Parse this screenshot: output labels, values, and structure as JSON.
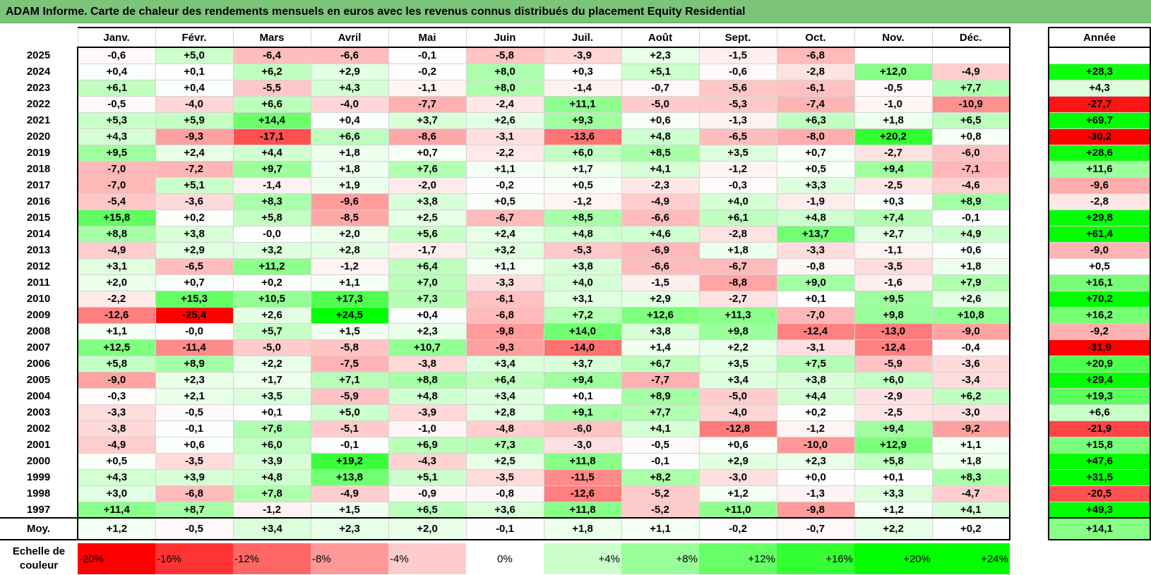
{
  "title": "ADAM Informe. Carte de chaleur des rendements mensuels en euros avec les revenus connus distribués du placement Equity Residential",
  "chart_data": {
    "type": "heatmap",
    "title": "ADAM Informe. Carte de chaleur des rendements mensuels en euros avec les revenus connus distribués du placement Equity Residential",
    "columns": [
      "Janv.",
      "Févr.",
      "Mars",
      "Avril",
      "Mai",
      "Juin",
      "Juil.",
      "Août",
      "Sept.",
      "Oct.",
      "Nov.",
      "Déc."
    ],
    "annual_header": "Année",
    "rows": [
      {
        "year": "2025",
        "values": [
          "-0,6",
          "+5,0",
          "-6,4",
          "-6,6",
          "-0,1",
          "-5,8",
          "-3,9",
          "+2,3",
          "-1,5",
          "-6,8",
          "",
          ""
        ],
        "annual": ""
      },
      {
        "year": "2024",
        "values": [
          "+0,4",
          "+0,1",
          "+6,2",
          "+2,9",
          "-0,2",
          "+8,0",
          "+0,3",
          "+5,1",
          "-0,6",
          "-2,8",
          "+12,0",
          "-4,9"
        ],
        "annual": "+28,3"
      },
      {
        "year": "2023",
        "values": [
          "+6,1",
          "+0,4",
          "-5,5",
          "+4,3",
          "-1,1",
          "+8,0",
          "-1,4",
          "-0,7",
          "-5,6",
          "-6,1",
          "-0,5",
          "+7,7"
        ],
        "annual": "+4,3"
      },
      {
        "year": "2022",
        "values": [
          "-0,5",
          "-4,0",
          "+6,6",
          "-4,0",
          "-7,7",
          "-2,4",
          "+11,1",
          "-5,0",
          "-5,3",
          "-7,4",
          "-1,0",
          "-10,9"
        ],
        "annual": "-27,7"
      },
      {
        "year": "2021",
        "values": [
          "+5,3",
          "+5,9",
          "+14,4",
          "+0,4",
          "+3,7",
          "+2,6",
          "+9,3",
          "+0,6",
          "-1,3",
          "+6,3",
          "+1,8",
          "+6,5"
        ],
        "annual": "+69,7"
      },
      {
        "year": "2020",
        "values": [
          "+4,3",
          "-9,3",
          "-17,1",
          "+6,6",
          "-8,6",
          "-3,1",
          "-13,6",
          "+4,8",
          "-6,5",
          "-8,0",
          "+20,2",
          "+0,8"
        ],
        "annual": "-30,2"
      },
      {
        "year": "2019",
        "values": [
          "+9,5",
          "+2,4",
          "+4,4",
          "+1,8",
          "+0,7",
          "-2,2",
          "+6,0",
          "+8,5",
          "+3,5",
          "+0,7",
          "-2,7",
          "-6,0"
        ],
        "annual": "+28,6"
      },
      {
        "year": "2018",
        "values": [
          "-7,0",
          "-7,2",
          "+9,7",
          "+1,8",
          "+7,6",
          "+1,1",
          "+1,7",
          "+4,1",
          "-1,2",
          "+0,5",
          "+9,4",
          "-7,1"
        ],
        "annual": "+11,6"
      },
      {
        "year": "2017",
        "values": [
          "-7,0",
          "+5,1",
          "-1,4",
          "+1,9",
          "-2,0",
          "-0,2",
          "+0,5",
          "-2,3",
          "-0,3",
          "+3,3",
          "-2,5",
          "-4,6"
        ],
        "annual": "-9,6"
      },
      {
        "year": "2016",
        "values": [
          "-5,4",
          "-3,6",
          "+8,3",
          "-9,6",
          "+3,8",
          "+0,5",
          "-1,2",
          "-4,9",
          "+4,0",
          "-1,9",
          "+0,3",
          "+8,9"
        ],
        "annual": "-2,8"
      },
      {
        "year": "2015",
        "values": [
          "+15,8",
          "+0,2",
          "+5,8",
          "-8,5",
          "+2,5",
          "-6,7",
          "+8,5",
          "-6,6",
          "+6,1",
          "+4,8",
          "+7,4",
          "-0,1"
        ],
        "annual": "+29,8"
      },
      {
        "year": "2014",
        "values": [
          "+8,8",
          "+3,8",
          "-0,0",
          "+2,0",
          "+5,6",
          "+2,4",
          "+4,8",
          "+4,6",
          "-2,8",
          "+13,7",
          "+2,7",
          "+4,9"
        ],
        "annual": "+61,4"
      },
      {
        "year": "2013",
        "values": [
          "-4,9",
          "+2,9",
          "+3,2",
          "+2,8",
          "-1,7",
          "+3,2",
          "-5,3",
          "-6,9",
          "+1,8",
          "-3,3",
          "-1,1",
          "+0,6"
        ],
        "annual": "-9,0"
      },
      {
        "year": "2012",
        "values": [
          "+3,1",
          "-6,5",
          "+11,2",
          "-1,2",
          "+6,4",
          "+1,1",
          "+3,8",
          "-6,6",
          "-6,7",
          "-0,8",
          "-3,5",
          "+1,8"
        ],
        "annual": "+0,5"
      },
      {
        "year": "2011",
        "values": [
          "+2,0",
          "+0,7",
          "+0,2",
          "+1,1",
          "+7,0",
          "-3,3",
          "+4,0",
          "-1,5",
          "-8,8",
          "+9,0",
          "-1,6",
          "+7,9"
        ],
        "annual": "+16,1"
      },
      {
        "year": "2010",
        "values": [
          "-2,2",
          "+15,3",
          "+10,5",
          "+17,3",
          "+7,3",
          "-6,1",
          "+3,1",
          "+2,9",
          "-2,7",
          "+0,1",
          "+9,5",
          "+2,6"
        ],
        "annual": "+70,2"
      },
      {
        "year": "2009",
        "values": [
          "-12,6",
          "-25,4",
          "+2,6",
          "+24,5",
          "+0,4",
          "-6,8",
          "+7,2",
          "+12,6",
          "+11,3",
          "-7,0",
          "+9,8",
          "+10,8"
        ],
        "annual": "+16,2"
      },
      {
        "year": "2008",
        "values": [
          "+1,1",
          "-0,0",
          "+5,7",
          "+1,5",
          "+2,3",
          "-9,8",
          "+14,0",
          "+3,8",
          "+9,8",
          "-12,4",
          "-13,0",
          "-9,0"
        ],
        "annual": "-9,2"
      },
      {
        "year": "2007",
        "values": [
          "+12,5",
          "-11,4",
          "-5,0",
          "-5,8",
          "+10,7",
          "-9,3",
          "-14,0",
          "+1,4",
          "+2,2",
          "-3,1",
          "-12,4",
          "-0,4"
        ],
        "annual": "-31,9"
      },
      {
        "year": "2006",
        "values": [
          "+5,8",
          "+8,9",
          "+2,2",
          "-7,5",
          "-3,8",
          "+3,4",
          "+3,7",
          "+6,7",
          "+3,5",
          "+7,5",
          "-5,9",
          "-3,6"
        ],
        "annual": "+20,9"
      },
      {
        "year": "2005",
        "values": [
          "-9,0",
          "+2,3",
          "+1,7",
          "+7,1",
          "+8,8",
          "+6,4",
          "+9,4",
          "-7,7",
          "+3,4",
          "+3,8",
          "+6,0",
          "-3,4"
        ],
        "annual": "+29,4"
      },
      {
        "year": "2004",
        "values": [
          "-0,3",
          "+2,1",
          "+3,5",
          "-5,9",
          "+4,8",
          "+3,4",
          "+0,1",
          "+8,9",
          "-5,0",
          "+4,4",
          "-2,9",
          "+6,2"
        ],
        "annual": "+19,3"
      },
      {
        "year": "2003",
        "values": [
          "-3,3",
          "-0,5",
          "+0,1",
          "+5,0",
          "-3,9",
          "+2,8",
          "+9,1",
          "+7,7",
          "-4,0",
          "+0,2",
          "-2,5",
          "-3,0"
        ],
        "annual": "+6,6"
      },
      {
        "year": "2002",
        "values": [
          "-3,8",
          "-0,1",
          "+7,6",
          "-5,1",
          "-1,0",
          "-4,8",
          "-6,0",
          "+4,1",
          "-12,8",
          "-1,2",
          "+9,4",
          "-9,2"
        ],
        "annual": "-21,9"
      },
      {
        "year": "2001",
        "values": [
          "-4,9",
          "+0,6",
          "+6,0",
          "-0,1",
          "+6,9",
          "+7,3",
          "-3,0",
          "-0,5",
          "+0,6",
          "-10,0",
          "+12,9",
          "+1,1"
        ],
        "annual": "+15,8"
      },
      {
        "year": "2000",
        "values": [
          "+0,5",
          "-3,5",
          "+3,9",
          "+19,2",
          "-4,3",
          "+2,5",
          "+11,8",
          "-0,1",
          "+2,9",
          "+2,3",
          "+5,8",
          "+1,8"
        ],
        "annual": "+47,6"
      },
      {
        "year": "1999",
        "values": [
          "+4,3",
          "+3,9",
          "+4,8",
          "+13,8",
          "+5,1",
          "-3,5",
          "-11,5",
          "+8,2",
          "-3,0",
          "+0,0",
          "+0,1",
          "+8,3"
        ],
        "annual": "+31,5"
      },
      {
        "year": "1998",
        "values": [
          "+3,0",
          "-6,8",
          "+7,8",
          "-4,9",
          "-0,9",
          "-0,8",
          "-12,6",
          "-5,2",
          "+1,2",
          "-1,3",
          "+3,3",
          "-4,7"
        ],
        "annual": "-20,5"
      },
      {
        "year": "1997",
        "values": [
          "+11,4",
          "+8,7",
          "-1,2",
          "+1,5",
          "+6,5",
          "+3,6",
          "+11,8",
          "-5,2",
          "+11,0",
          "-9,8",
          "+1,2",
          "+4,1"
        ],
        "annual": "+49,3"
      }
    ],
    "average": {
      "label": "Moy.",
      "values": [
        "+1,2",
        "-0,5",
        "+3,4",
        "+2,3",
        "+2,0",
        "-0,1",
        "+1,8",
        "+1,1",
        "-0,2",
        "-0,7",
        "+2,2",
        "+0,2"
      ],
      "annual": "+14,1"
    },
    "color_scale": {
      "label": "Echelle de couleur",
      "steps": [
        "-20%",
        "-16%",
        "-12%",
        "-8%",
        "-4%",
        "0%",
        "+4%",
        "+8%",
        "+12%",
        "+16%",
        "+20%",
        "+24%"
      ],
      "negative_color": "#ff0000",
      "neutral_color": "#ffffff",
      "positive_color": "#00ff00"
    }
  }
}
